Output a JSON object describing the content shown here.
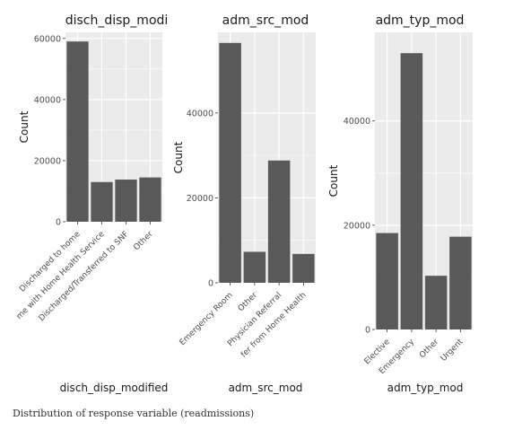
{
  "caption": "Distribution of response variable (readmissions)",
  "colors": {
    "panel": "#ebebeb",
    "grid": "#ffffff",
    "bar": "#595959",
    "text": "#1a1a1a",
    "ticktext": "#4d4d4d"
  },
  "chart_data": [
    {
      "type": "bar",
      "title": "disch_disp_modi",
      "xlabel": "disch_disp_modified",
      "ylabel": "Count",
      "categories": [
        "Discharged to home",
        "Discharged/Transferred to Home with Home Health Service",
        "Discharged/Transferred to SNF",
        "Other"
      ],
      "category_labels": [
        "Discharged to home",
        "me with Home Health Service",
        "Discharged/Transferred to SNF",
        "Other"
      ],
      "values": [
        59000,
        13000,
        13800,
        14500
      ],
      "ylim": [
        0,
        62000
      ],
      "yticks": [
        0,
        20000,
        40000,
        60000
      ],
      "grid": true
    },
    {
      "type": "bar",
      "title": "adm_src_mod",
      "xlabel": "adm_src_mod",
      "ylabel": "Count",
      "categories": [
        "Emergency Room",
        "Other",
        "Physician Referral",
        "Transfer from Home Health"
      ],
      "category_labels": [
        "Emergency Room",
        "Other",
        "Physician Referral",
        "fer from Home Health"
      ],
      "values": [
        56500,
        7300,
        28800,
        6800
      ],
      "ylim": [
        0,
        59000
      ],
      "yticks": [
        0,
        20000,
        40000
      ],
      "grid": true
    },
    {
      "type": "bar",
      "title": "adm_typ_mod",
      "xlabel": "adm_typ_mod",
      "ylabel": "Count",
      "categories": [
        "Elective",
        "Emergency",
        "Other",
        "Urgent"
      ],
      "category_labels": [
        "Elective",
        "Emergency",
        "Other",
        "Urgent"
      ],
      "values": [
        18500,
        53000,
        10300,
        17800
      ],
      "ylim": [
        0,
        57000
      ],
      "yticks": [
        0,
        20000,
        40000
      ],
      "grid": true
    }
  ]
}
